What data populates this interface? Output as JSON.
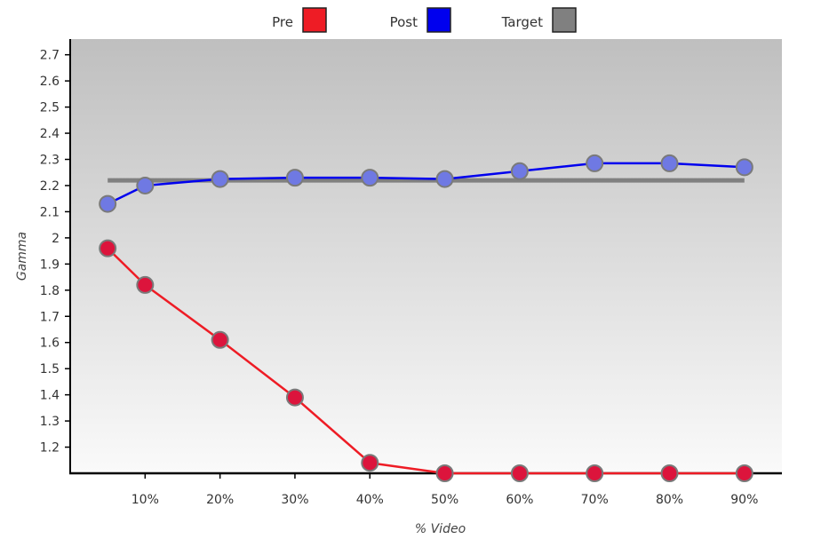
{
  "chart_data": {
    "type": "line",
    "xlabel": "% Video",
    "ylabel": "Gamma",
    "x": [
      5,
      10,
      20,
      30,
      40,
      50,
      60,
      70,
      80,
      90
    ],
    "x_tick_values": [
      10,
      20,
      30,
      40,
      50,
      60,
      70,
      80,
      90
    ],
    "x_tick_labels": [
      "10%",
      "20%",
      "30%",
      "40%",
      "50%",
      "60%",
      "70%",
      "80%",
      "90%"
    ],
    "xlim": [
      0,
      95
    ],
    "ylim": [
      1.1,
      2.76
    ],
    "y_tick_values": [
      1.2,
      1.3,
      1.4,
      1.5,
      1.6,
      1.7,
      1.8,
      1.9,
      2.0,
      2.1,
      2.2,
      2.3,
      2.4,
      2.5,
      2.6,
      2.7
    ],
    "y_tick_labels": [
      "1.2",
      "1.3",
      "1.4",
      "1.5",
      "1.6",
      "1.7",
      "1.8",
      "1.9",
      "2",
      "2.1",
      "2.2",
      "2.3",
      "2.4",
      "2.5",
      "2.6",
      "2.7"
    ],
    "legend_position": "top-center",
    "grid": false,
    "background": {
      "top": "#bfbfbf",
      "bottom": "#fafafa"
    },
    "series": [
      {
        "name": "Pre",
        "color": "#ee1c25",
        "marker_color": "#dc143c",
        "values": [
          1.96,
          1.82,
          1.61,
          1.39,
          1.14,
          1.1,
          1.1,
          1.1,
          1.1,
          1.1
        ]
      },
      {
        "name": "Post",
        "color": "#0000ee",
        "marker_color": "#6f79e3",
        "values": [
          2.13,
          2.2,
          2.225,
          2.23,
          2.23,
          2.225,
          2.255,
          2.285,
          2.285,
          2.27
        ]
      },
      {
        "name": "Target",
        "color": "#808080",
        "marker_color": "#808080",
        "values": [
          2.22,
          2.22,
          2.22,
          2.22,
          2.22,
          2.22,
          2.22,
          2.22,
          2.22,
          2.22
        ]
      }
    ]
  }
}
